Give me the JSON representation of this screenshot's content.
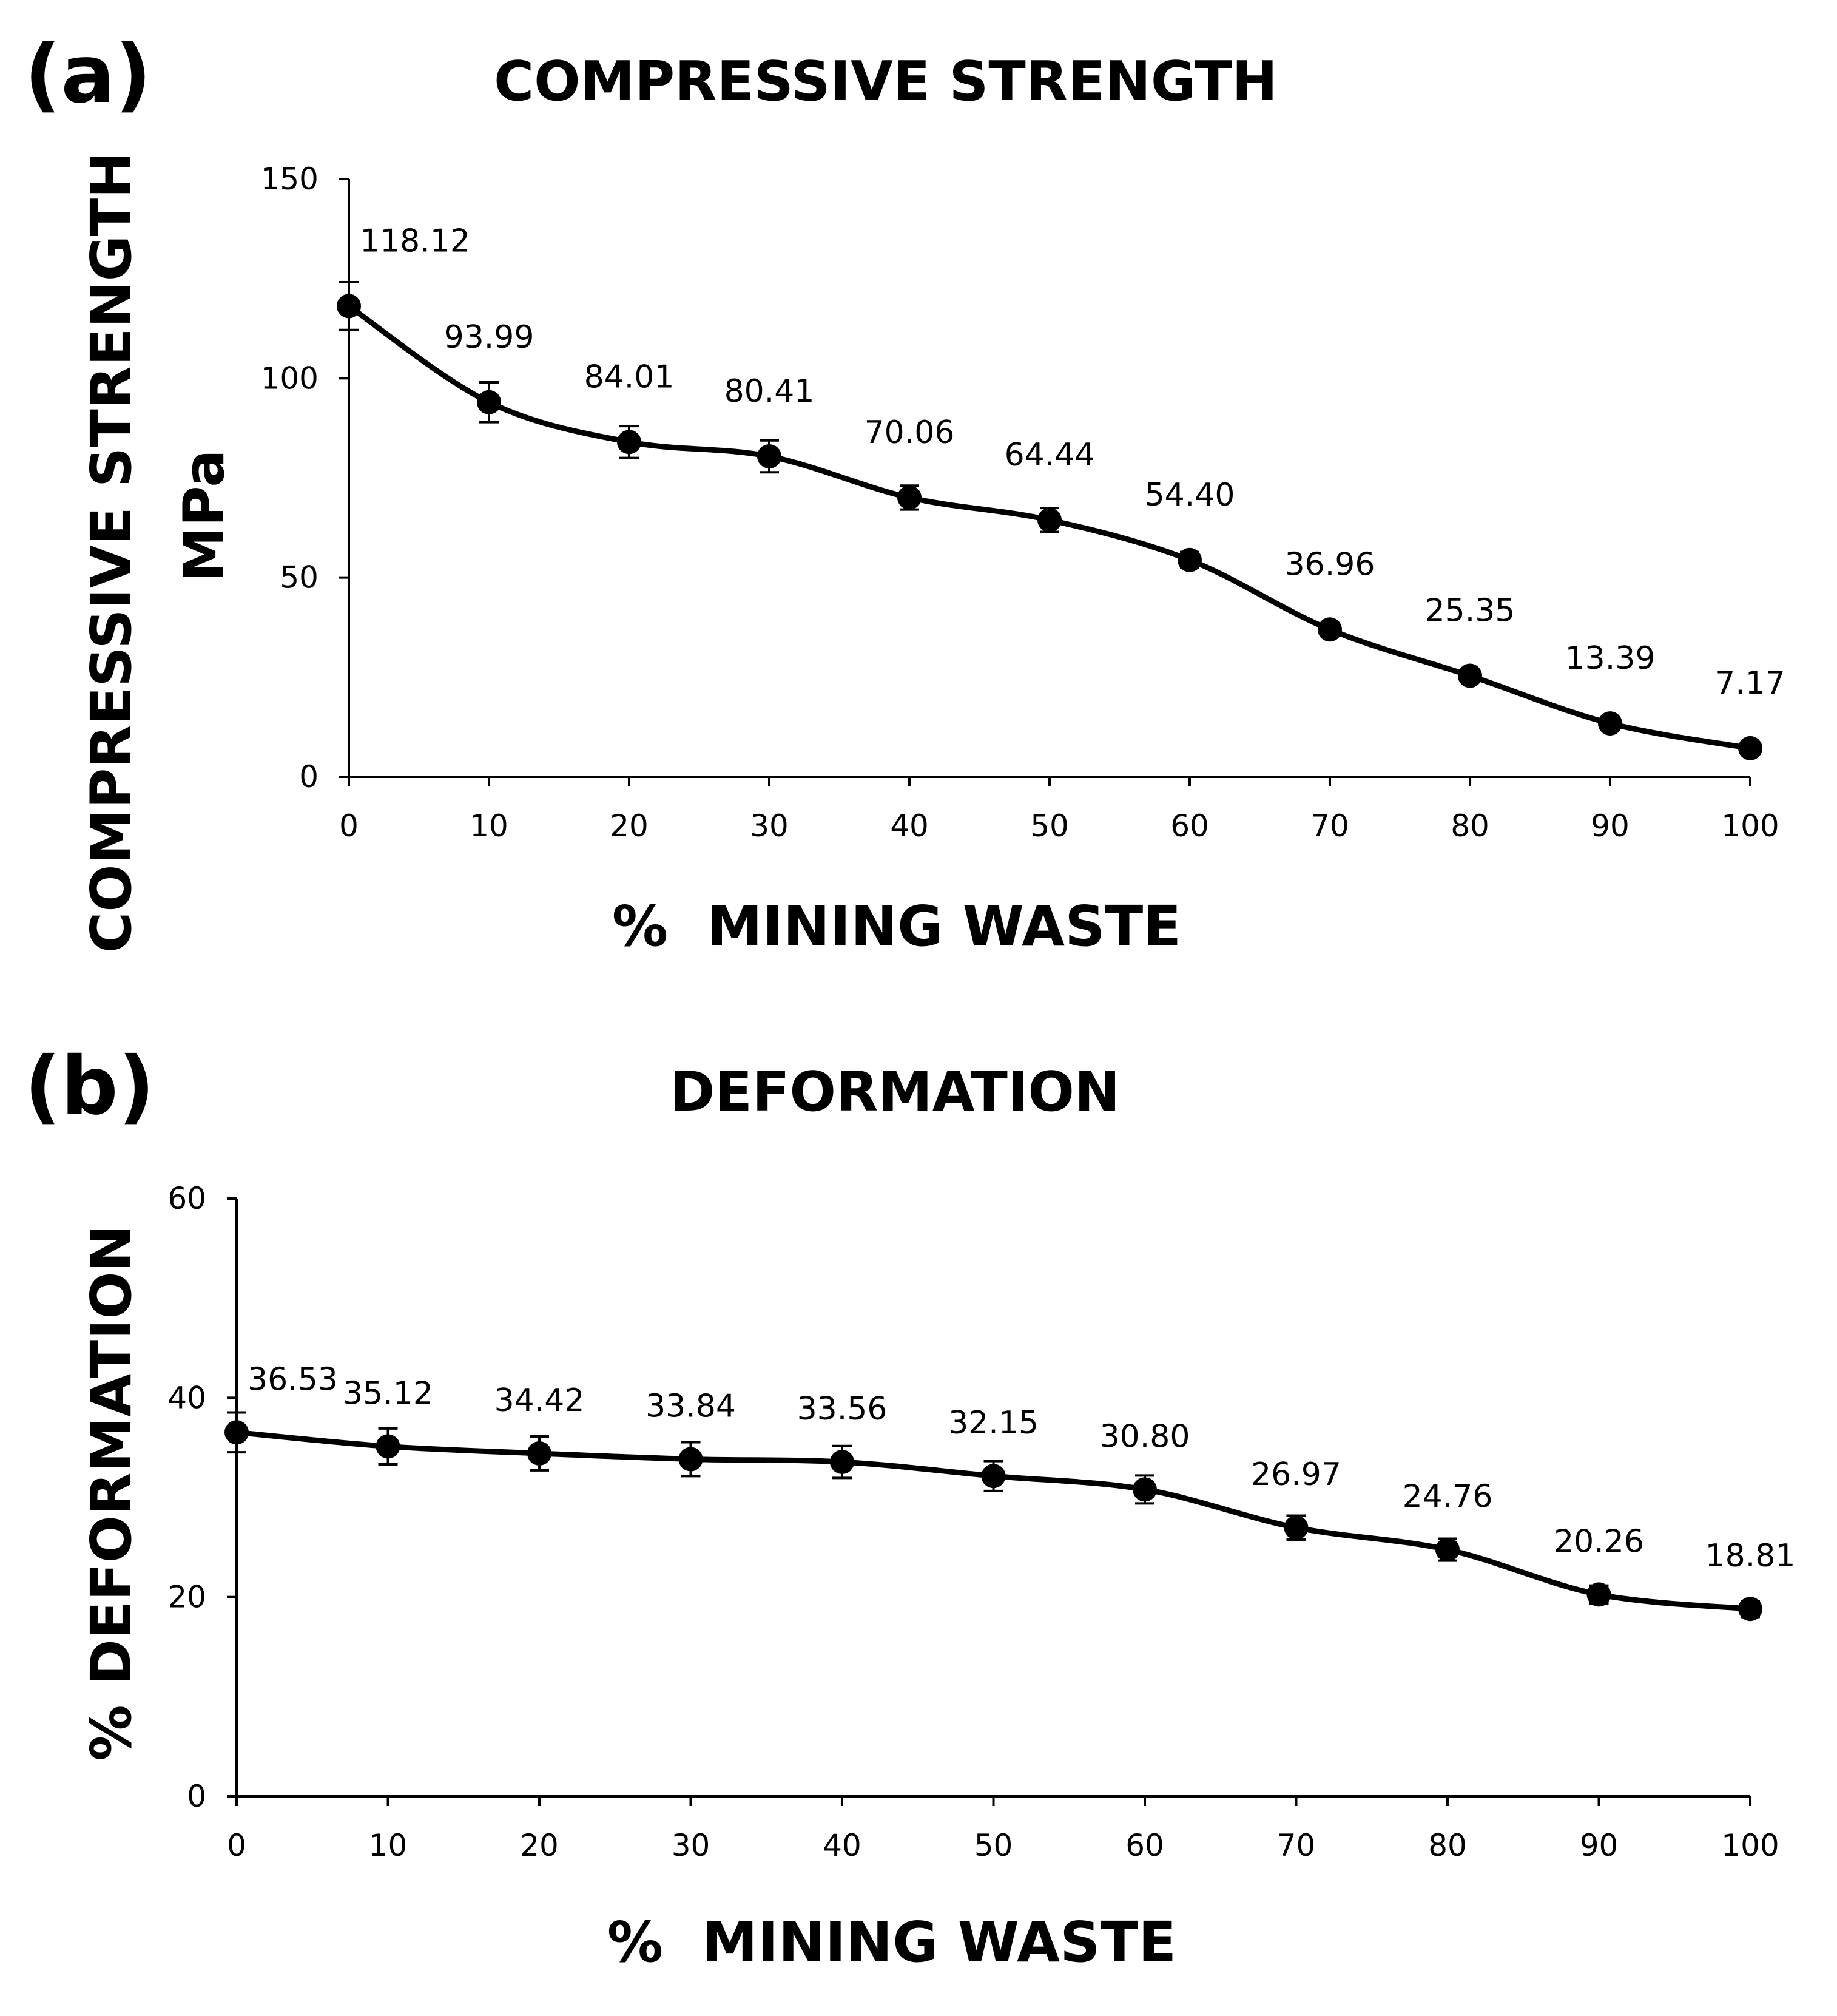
{
  "colors": {
    "ink": "#000000",
    "background": "#ffffff"
  },
  "chart_data": [
    {
      "type": "line",
      "panel_label": "(a)",
      "title": "COMPRESSIVE STRENGTH",
      "xlabel": "%  MINING WASTE",
      "ylabel_lines": [
        "COMPRESSIVE STRENGTH",
        "MPa"
      ],
      "x": [
        0,
        10,
        20,
        30,
        40,
        50,
        60,
        70,
        80,
        90,
        100
      ],
      "x_ticks": [
        0,
        10,
        20,
        30,
        40,
        50,
        60,
        70,
        80,
        90,
        100
      ],
      "y_ticks": [
        0,
        50,
        100,
        150
      ],
      "xlim": [
        0,
        100
      ],
      "ylim": [
        0,
        150
      ],
      "values": [
        118.12,
        93.99,
        84.01,
        80.41,
        70.06,
        64.44,
        54.4,
        36.96,
        25.35,
        13.39,
        7.17
      ],
      "data_labels": [
        "118.12",
        "93.99",
        "84.01",
        "80.41",
        "70.06",
        "64.44",
        "54.40",
        "36.96",
        "25.35",
        "13.39",
        "7.17"
      ],
      "error": [
        6,
        5,
        4,
        4,
        3,
        3,
        2,
        1.5,
        1.5,
        1,
        1
      ],
      "grid": false,
      "legend": "none"
    },
    {
      "type": "line",
      "panel_label": "(b)",
      "title": "DEFORMATION",
      "xlabel": "%  MINING WASTE",
      "ylabel_lines": [
        "% DEFORMATION"
      ],
      "x": [
        0,
        10,
        20,
        30,
        40,
        50,
        60,
        70,
        80,
        90,
        100
      ],
      "x_ticks": [
        0,
        10,
        20,
        30,
        40,
        50,
        60,
        70,
        80,
        90,
        100
      ],
      "y_ticks": [
        0,
        20,
        40,
        60
      ],
      "xlim": [
        0,
        100
      ],
      "ylim": [
        0,
        60
      ],
      "values": [
        36.53,
        35.12,
        34.42,
        33.84,
        33.56,
        32.15,
        30.8,
        26.97,
        24.76,
        20.26,
        18.81
      ],
      "data_labels": [
        "36.53",
        "35.12",
        "34.42",
        "33.84",
        "33.56",
        "32.15",
        "30.80",
        "26.97",
        "24.76",
        "20.26",
        "18.81"
      ],
      "error": [
        2,
        1.8,
        1.7,
        1.7,
        1.6,
        1.5,
        1.4,
        1.2,
        1.1,
        0.9,
        0.8
      ],
      "grid": false,
      "legend": "none"
    }
  ]
}
